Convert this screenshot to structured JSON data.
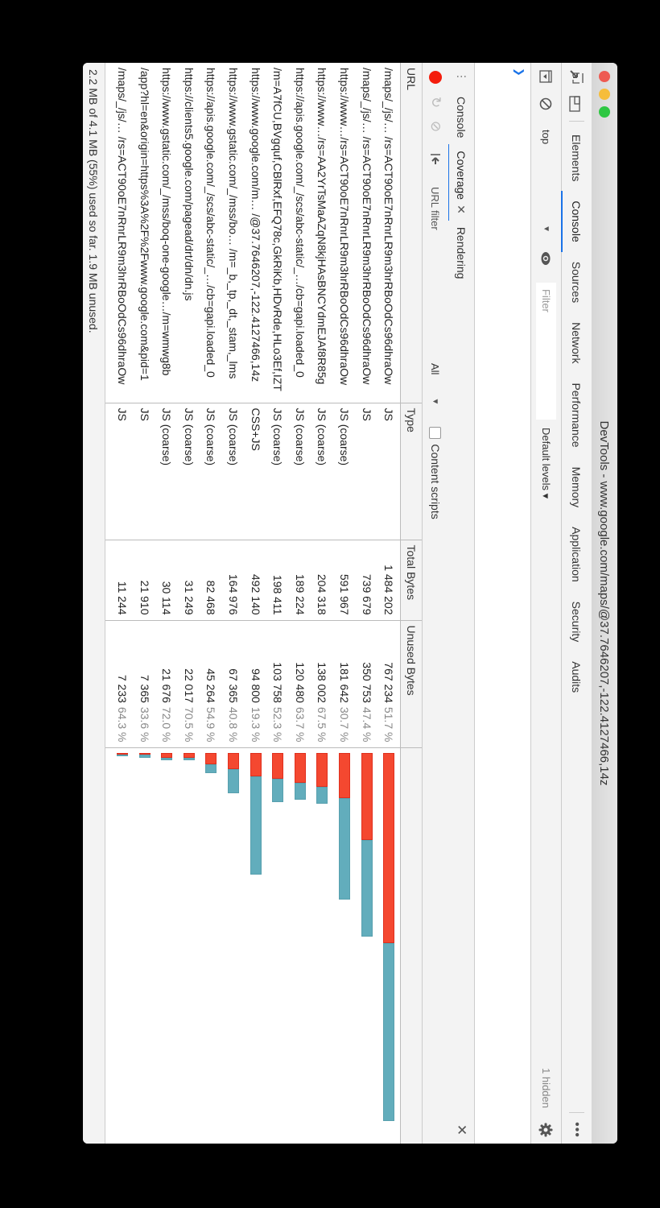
{
  "window": {
    "title": "DevTools - www.google.com/maps/@37.7646207,-122.4127466,14z",
    "traffic_lights": [
      "#ee5a52",
      "#f6bd3b",
      "#2ec742"
    ]
  },
  "main_tabs": {
    "items": [
      {
        "label": "Elements",
        "active": false
      },
      {
        "label": "Console",
        "active": true
      },
      {
        "label": "Sources",
        "active": false
      },
      {
        "label": "Network",
        "active": false
      },
      {
        "label": "Performance",
        "active": false
      },
      {
        "label": "Memory",
        "active": false
      },
      {
        "label": "Application",
        "active": false
      },
      {
        "label": "Security",
        "active": false
      },
      {
        "label": "Audits",
        "active": false
      }
    ]
  },
  "console_toolbar": {
    "context": "top",
    "filter_placeholder": "Filter",
    "levels": "Default levels ▾",
    "hidden": "1 hidden"
  },
  "console": {
    "prompt_icon": "chevron-right"
  },
  "drawer": {
    "tabs": [
      {
        "label": "Console",
        "active": false,
        "closable": false
      },
      {
        "label": "Coverage",
        "active": true,
        "closable": true
      },
      {
        "label": "Rendering",
        "active": false,
        "closable": false
      }
    ]
  },
  "coverage_toolbar": {
    "url_filter_placeholder": "URL filter",
    "type_select": "All",
    "content_scripts_label": "Content scripts",
    "content_scripts_checked": false
  },
  "table": {
    "headers": {
      "url": "URL",
      "type": "Type",
      "total": "Total Bytes",
      "unused": "Unused Bytes"
    },
    "rows": [
      {
        "url": "/maps/_/js/…  /rs=ACT90oE7nRnrLR9m3hrRBoOdCs96dhraOw",
        "type": "JS",
        "total": "1 484 202",
        "unused": "767 234",
        "pct": "51.7 %",
        "total_n": 1484202,
        "unused_n": 767234
      },
      {
        "url": "/maps/_/js/…  /rs=ACT90oE7nRnrLR9m3hrRBoOdCs96dhraOw",
        "type": "JS",
        "total": "739 679",
        "unused": "350 753",
        "pct": "47.4 %",
        "total_n": 739679,
        "unused_n": 350753
      },
      {
        "url": "https://www…/rs=ACT90oE7nRnrLR9m3hrRBoOdCs96dhraOw",
        "type": "JS (coarse)",
        "total": "591 967",
        "unused": "181 642",
        "pct": "30.7 %",
        "total_n": 591967,
        "unused_n": 181642
      },
      {
        "url": "https://www…/rs=AA2YrTsMaAZqN8kjHAsBNCYdmEJAf8R85g",
        "type": "JS (coarse)",
        "total": "204 318",
        "unused": "138 002",
        "pct": "67.5 %",
        "total_n": 204318,
        "unused_n": 138002
      },
      {
        "url": "https://apis.google.com/_/scs/abc-static/_…/cb=gapi.loaded_0",
        "type": "JS (coarse)",
        "total": "189 224",
        "unused": "120 480",
        "pct": "63.7 %",
        "total_n": 189224,
        "unused_n": 120480
      },
      {
        "url": "/m=A7fCU,BVgquf,CBlRxf,EFQ78c,GkRiKb,HDvRde,HLo3Ef,IZT",
        "type": "JS (coarse)",
        "total": "198 411",
        "unused": "103 758",
        "pct": "52.3 %",
        "total_n": 198411,
        "unused_n": 103758
      },
      {
        "url": "https://www.google.com/m…  /@37.7646207,-122.4127466,14z",
        "type": "CSS+JS",
        "total": "492 140",
        "unused": "94 800",
        "pct": "19.3 %",
        "total_n": 492140,
        "unused_n": 94800
      },
      {
        "url": "https://www.gstatic.com/_/mss/bo…  /m=_b,_tp,_dt,_stam,_lms",
        "type": "JS (coarse)",
        "total": "164 976",
        "unused": "67 365",
        "pct": "40.8 %",
        "total_n": 164976,
        "unused_n": 67365
      },
      {
        "url": "https://apis.google.com/_/scs/abc-static/_…/cb=gapi.loaded_0",
        "type": "JS (coarse)",
        "total": "82 468",
        "unused": "45 264",
        "pct": "54.9 %",
        "total_n": 82468,
        "unused_n": 45264
      },
      {
        "url": "https://clients5.google.com/pagead/drt/dn/dn.js",
        "type": "JS (coarse)",
        "total": "31 249",
        "unused": "22 017",
        "pct": "70.5 %",
        "total_n": 31249,
        "unused_n": 22017
      },
      {
        "url": "https://www.gstatic.com/_/mss/boq-one-google…/m=wmwg8b",
        "type": "JS (coarse)",
        "total": "30 114",
        "unused": "21 676",
        "pct": "72.0 %",
        "total_n": 30114,
        "unused_n": 21676
      },
      {
        "url": "/app?hl=en&origin=https%3A%2F%2Fwww.google.com&pid=1",
        "type": "JS",
        "total": "21 910",
        "unused": "7 365",
        "pct": "33.6 %",
        "total_n": 21910,
        "unused_n": 7365
      },
      {
        "url": "/maps/_/js/…  /rs=ACT90oE7nRnrLR9m3hrRBoOdCs96dhraOw",
        "type": "JS",
        "total": "11 244",
        "unused": "7 233",
        "pct": "64.3 %",
        "total_n": 11244,
        "unused_n": 7233
      }
    ],
    "colors": {
      "unused": "#f44830",
      "used": "#62adbc"
    }
  },
  "status": {
    "text": "2.2 MB of 4.1 MB (55%) used so far. 1.9 MB unused."
  }
}
